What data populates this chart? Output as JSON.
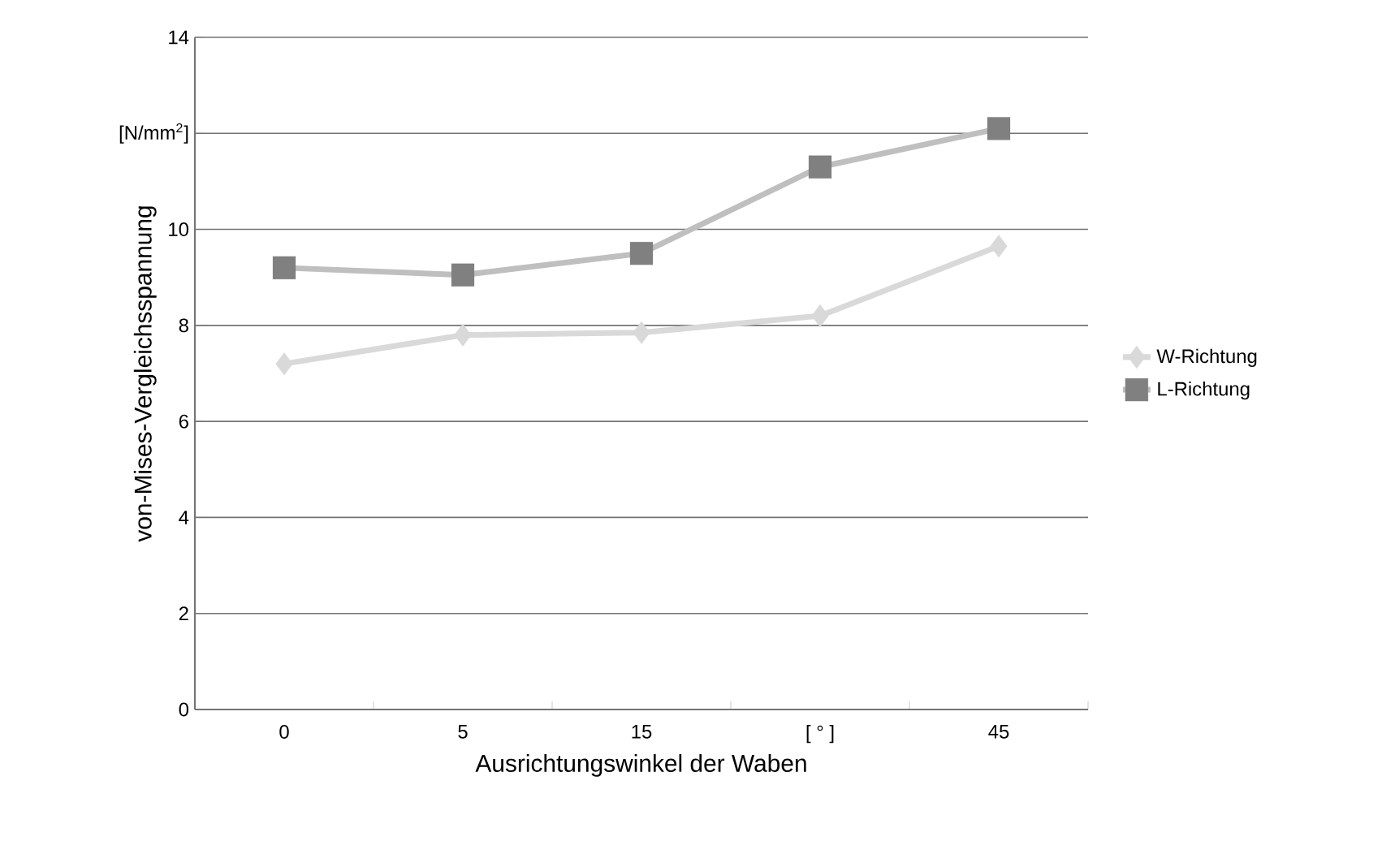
{
  "chart_data": {
    "type": "line",
    "xlabel": "Ausrichtungswinkel der Waben",
    "ylabel": "von-Mises-Vergleichsspannung",
    "categories": [
      "0",
      "5",
      "15",
      "[ ° ]",
      "45"
    ],
    "series": [
      {
        "name": "W-Richtung",
        "color": "#d9d9d9",
        "marker": "diamond",
        "values": [
          7.2,
          7.8,
          7.85,
          8.2,
          9.65
        ]
      },
      {
        "name": "L-Richtung",
        "color": "#808080",
        "marker": "square",
        "values": [
          9.2,
          9.05,
          9.5,
          11.3,
          12.1
        ]
      }
    ],
    "ylim": [
      0,
      14
    ],
    "yticks": [
      0,
      2,
      4,
      6,
      8,
      10,
      {
        "value": 12,
        "label": null
      },
      14
    ],
    "annotations": [
      "[N/mm$^{2}$]"
    ],
    "grid": "y",
    "legend": "right"
  }
}
